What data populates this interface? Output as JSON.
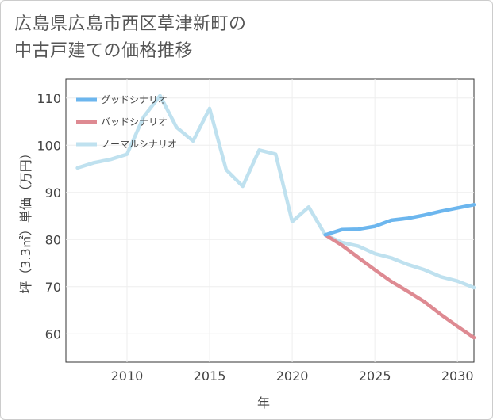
{
  "title_line1": "広島県広島市西区草津新町の",
  "title_line2": "中古戸建ての価格推移",
  "chart_data": {
    "type": "line",
    "xlabel": "年",
    "ylabel": "坪（3.3㎡）単価（万円）",
    "xlim": [
      2006.3,
      2031
    ],
    "ylim": [
      54,
      114
    ],
    "xticks": [
      2010,
      2015,
      2020,
      2025,
      2030
    ],
    "yticks": [
      60,
      70,
      80,
      90,
      100,
      110
    ],
    "grid": true,
    "legend_position": "top-left",
    "series": [
      {
        "name": "グッドシナリオ",
        "color": "#6cb6ee",
        "x": [
          2022,
          2023,
          2024,
          2025,
          2026,
          2027,
          2028,
          2029,
          2030,
          2031
        ],
        "values": [
          81.0,
          82.1,
          82.2,
          82.8,
          84.1,
          84.5,
          85.2,
          86.0,
          86.7,
          87.4
        ]
      },
      {
        "name": "バッドシナリオ",
        "color": "#de8a92",
        "x": [
          2022,
          2023,
          2024,
          2025,
          2026,
          2027,
          2028,
          2029,
          2030,
          2031
        ],
        "values": [
          81.0,
          78.8,
          76.2,
          73.6,
          71.1,
          69.0,
          66.8,
          64.1,
          61.6,
          59.2
        ]
      },
      {
        "name": "ノーマルシナリオ",
        "color": "#bfe1ef",
        "x": [
          2007,
          2008,
          2009,
          2010,
          2011,
          2012,
          2013,
          2014,
          2015,
          2016,
          2017,
          2018,
          2019,
          2020,
          2021,
          2022,
          2023,
          2024,
          2025,
          2026,
          2027,
          2028,
          2029,
          2030,
          2031
        ],
        "values": [
          95.2,
          96.3,
          97.0,
          98.1,
          106.0,
          110.5,
          103.8,
          100.9,
          107.8,
          94.8,
          91.3,
          99.0,
          98.1,
          83.8,
          86.9,
          81.0,
          79.4,
          78.6,
          77.0,
          76.1,
          74.7,
          73.6,
          72.1,
          71.2,
          69.8
        ]
      }
    ]
  }
}
